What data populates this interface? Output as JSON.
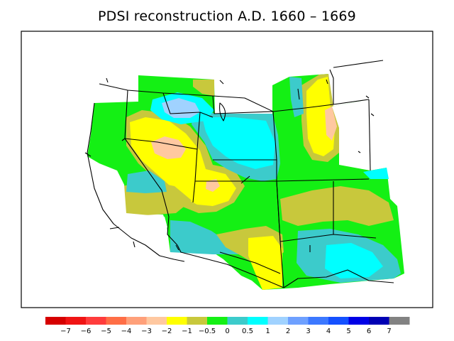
{
  "title": "PDSI reconstruction A.D. 1660 – 1669",
  "legend": {
    "colors": [
      "#d60000",
      "#f01414",
      "#ff3c3c",
      "#ff6e46",
      "#ffa07a",
      "#ffc8a0",
      "#ffff00",
      "#c8c83c",
      "#14f014",
      "#3ccbcb",
      "#00ffff",
      "#a0d2ff",
      "#6ea0ff",
      "#3c78ff",
      "#1450ff",
      "#0000e6",
      "#0000b4",
      "#828282"
    ],
    "labels": [
      "−7",
      "−6",
      "−5",
      "−4",
      "−3",
      "−2",
      "−1",
      "−0.5",
      "0",
      "0.5",
      "1",
      "2",
      "3",
      "4",
      "5",
      "6",
      "7"
    ]
  },
  "map_colors": {
    "green": "#14f014",
    "yellow": "#ffff00",
    "olive": "#c8c83c",
    "teal": "#3ccbcb",
    "cyan": "#00ffff",
    "lightblue": "#a0d2ff",
    "peach": "#ffc8a0"
  }
}
